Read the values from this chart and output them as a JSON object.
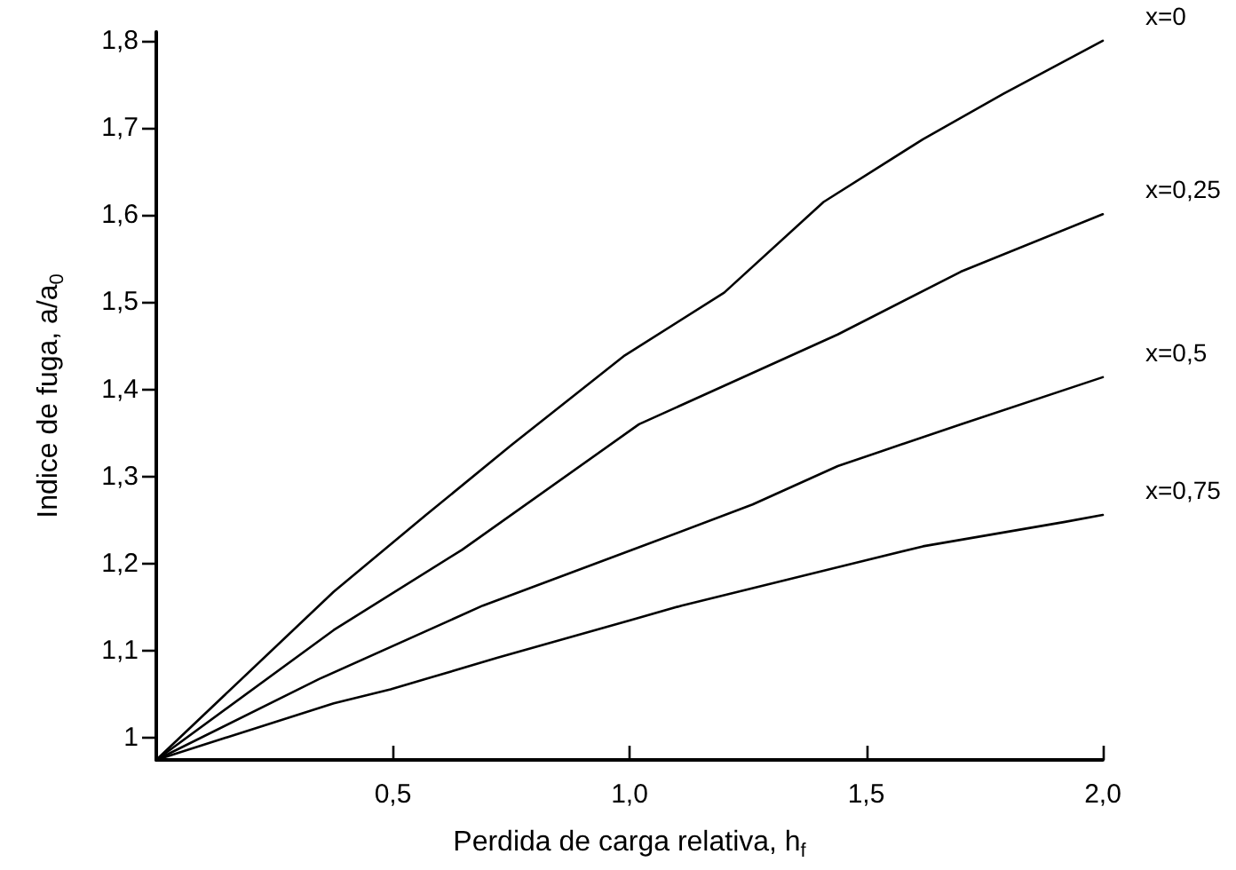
{
  "chart_data": {
    "type": "line",
    "xlabel": "Perdida de carga relativa, h$_{f}$",
    "ylabel": "Indice de fuga, a/a$_{0}$",
    "xlim": [
      0,
      2.0
    ],
    "xticks": [
      {
        "value": 0.5,
        "label": "0,5"
      },
      {
        "value": 1.0,
        "label": "1,0"
      },
      {
        "value": 1.5,
        "label": "1,5"
      },
      {
        "value": 2.0,
        "label": "2,0"
      }
    ],
    "ylim": [
      0.975,
      1.81
    ],
    "yticks": [
      {
        "value": 1,
        "label": "1"
      },
      {
        "value": 1.1,
        "label": "1,1"
      },
      {
        "value": 1.2,
        "label": "1,2"
      },
      {
        "value": 1.3,
        "label": "1,3"
      },
      {
        "value": 1.4,
        "label": "1,4"
      },
      {
        "value": 1.5,
        "label": "1,5"
      },
      {
        "value": 1.6,
        "label": "1,6"
      },
      {
        "value": 1.7,
        "label": "1,7"
      },
      {
        "value": 1.8,
        "label": "1,8"
      }
    ],
    "grid": false,
    "legend": false,
    "marker": "none",
    "line_style": "solid",
    "series": [
      {
        "name": "x=0",
        "color": "#000000",
        "x": [
          0,
          0.375,
          0.57,
          0.75,
          0.99,
          1.2,
          1.41,
          1.62,
          1.79,
          2.0
        ],
        "values": [
          0.975,
          1.168,
          1.256,
          1.336,
          1.439,
          1.511,
          1.615,
          1.687,
          1.739,
          1.8
        ]
      },
      {
        "name": "x=0,25",
        "color": "#000000",
        "x": [
          0,
          0.375,
          0.646,
          1.02,
          1.44,
          1.7,
          2.0
        ],
        "values": [
          0.975,
          1.124,
          1.216,
          1.36,
          1.463,
          1.535,
          1.601
        ]
      },
      {
        "name": "x=0,5",
        "color": "#000000",
        "x": [
          0,
          0.345,
          0.69,
          1.006,
          1.26,
          1.44,
          1.7,
          2.0
        ],
        "values": [
          0.975,
          1.068,
          1.152,
          1.216,
          1.268,
          1.312,
          1.36,
          1.414
        ]
      },
      {
        "name": "x=0,75",
        "color": "#000000",
        "x": [
          0,
          0.375,
          0.495,
          0.72,
          1.006,
          1.11,
          1.47,
          1.62,
          1.92,
          2.0
        ],
        "values": [
          0.975,
          1.04,
          1.056,
          1.092,
          1.136,
          1.152,
          1.2,
          1.22,
          1.248,
          1.256
        ]
      }
    ]
  }
}
